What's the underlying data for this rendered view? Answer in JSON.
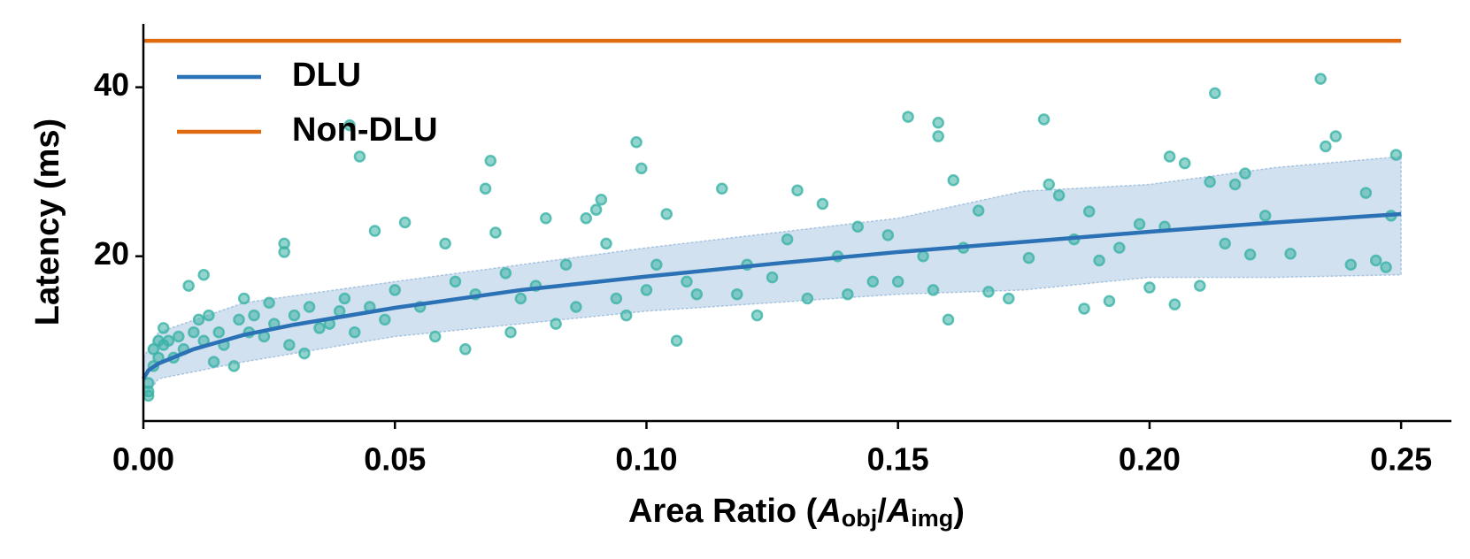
{
  "chart_data": {
    "type": "scatter",
    "xlabel": [
      "Area Ratio (",
      "A",
      "obj",
      "/",
      "A",
      "img",
      ")"
    ],
    "ylabel": "Latency (ms)",
    "xlim": [
      0,
      0.26
    ],
    "ylim": [
      0.5,
      47.5
    ],
    "xticks": [
      {
        "value": 0,
        "label": "0.00"
      },
      {
        "value": 0.05,
        "label": "0.05"
      },
      {
        "value": 0.1,
        "label": "0.10"
      },
      {
        "value": 0.15,
        "label": "0.15"
      },
      {
        "value": 0.2,
        "label": "0.20"
      },
      {
        "value": 0.25,
        "label": "0.25"
      }
    ],
    "yticks": [
      20,
      40
    ],
    "legend": "upper left",
    "scatter": {
      "color": "#3bb3a6",
      "x": [
        0.001,
        0.001,
        0.001,
        0.002,
        0.002,
        0.003,
        0.003,
        0.004,
        0.004,
        0.005,
        0.006,
        0.007,
        0.008,
        0.009,
        0.01,
        0.011,
        0.012,
        0.012,
        0.013,
        0.014,
        0.015,
        0.016,
        0.018,
        0.019,
        0.02,
        0.021,
        0.022,
        0.024,
        0.025,
        0.026,
        0.028,
        0.028,
        0.029,
        0.03,
        0.032,
        0.033,
        0.035,
        0.037,
        0.039,
        0.04,
        0.041,
        0.042,
        0.043,
        0.045,
        0.046,
        0.048,
        0.05,
        0.052,
        0.055,
        0.058,
        0.06,
        0.062,
        0.064,
        0.066,
        0.068,
        0.069,
        0.07,
        0.072,
        0.073,
        0.075,
        0.078,
        0.08,
        0.082,
        0.084,
        0.086,
        0.088,
        0.09,
        0.091,
        0.092,
        0.094,
        0.096,
        0.098,
        0.099,
        0.1,
        0.102,
        0.104,
        0.106,
        0.108,
        0.11,
        0.115,
        0.118,
        0.12,
        0.122,
        0.125,
        0.128,
        0.13,
        0.132,
        0.135,
        0.138,
        0.14,
        0.142,
        0.145,
        0.148,
        0.15,
        0.152,
        0.155,
        0.157,
        0.158,
        0.158,
        0.16,
        0.161,
        0.163,
        0.166,
        0.168,
        0.172,
        0.176,
        0.179,
        0.18,
        0.182,
        0.185,
        0.187,
        0.188,
        0.19,
        0.192,
        0.194,
        0.198,
        0.2,
        0.203,
        0.204,
        0.205,
        0.207,
        0.21,
        0.212,
        0.213,
        0.215,
        0.217,
        0.219,
        0.22,
        0.223,
        0.228,
        0.234,
        0.235,
        0.237,
        0.24,
        0.243,
        0.245,
        0.247,
        0.248,
        0.249
      ],
      "values": [
        4,
        5,
        3.5,
        7,
        9,
        10,
        8,
        11.5,
        9.5,
        10,
        8,
        10.5,
        9,
        16.5,
        11,
        12.5,
        17.8,
        10,
        13,
        7.5,
        11,
        9.5,
        7,
        12.5,
        15,
        11,
        13,
        10.5,
        14.5,
        12,
        20.5,
        21.5,
        9.5,
        13,
        8.5,
        14,
        11.5,
        12,
        13.5,
        15,
        35.5,
        11,
        31.8,
        14,
        23,
        12.5,
        16,
        24,
        14,
        10.5,
        21.5,
        17,
        9,
        15.5,
        28,
        31.3,
        22.8,
        18,
        11,
        15,
        16.5,
        24.5,
        12,
        19,
        14,
        24.5,
        25.5,
        26.7,
        21.5,
        15,
        13,
        33.5,
        30.4,
        16,
        19,
        25,
        10,
        17,
        15.5,
        28,
        15.5,
        19,
        13,
        17.5,
        22,
        27.8,
        15,
        26.2,
        20,
        15.5,
        23.5,
        17,
        22.5,
        17,
        36.5,
        20,
        16,
        35.8,
        34.2,
        12.5,
        29,
        21,
        25.4,
        15.8,
        15,
        19.8,
        36.2,
        28.5,
        27.2,
        22,
        13.8,
        25.3,
        19.5,
        14.7,
        21,
        23.8,
        16.3,
        23.5,
        31.8,
        14.3,
        31,
        16.5,
        28.8,
        39.3,
        21.5,
        28.5,
        29.8,
        20.2,
        24.8,
        20.3,
        41,
        33,
        34.2,
        19,
        27.5,
        19.5,
        18.7,
        24.8,
        32
      ]
    },
    "band": {
      "color": "#4a86c0",
      "x": [
        0,
        0.003,
        0.02,
        0.05,
        0.1,
        0.15,
        0.175,
        0.2,
        0.225,
        0.25
      ],
      "upper": [
        8,
        11,
        14.5,
        17,
        21,
        24.5,
        27.7,
        28.5,
        30.5,
        31.8
      ],
      "lower": [
        3,
        5.5,
        7.5,
        10.5,
        13.5,
        15.5,
        16,
        17.5,
        17.5,
        17.8
      ]
    },
    "series": [
      {
        "name": "DLU",
        "color": "#2a72b5",
        "x": [
          0,
          0.001,
          0.003,
          0.01,
          0.02,
          0.03,
          0.05,
          0.075,
          0.1,
          0.125,
          0.15,
          0.175,
          0.2,
          0.225,
          0.25
        ],
        "values": [
          5.5,
          6.5,
          7.3,
          9.0,
          10.7,
          11.9,
          13.9,
          16.0,
          17.6,
          19.1,
          20.5,
          21.7,
          22.9,
          24.0,
          25.0
        ]
      },
      {
        "name": "Non-DLU",
        "color": "#e06a10",
        "x": [
          0,
          0.25
        ],
        "values": [
          45.5,
          45.5
        ]
      }
    ]
  }
}
